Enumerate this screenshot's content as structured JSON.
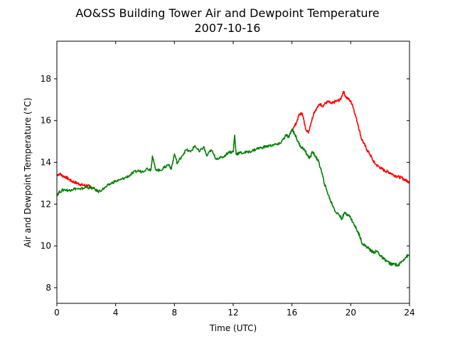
{
  "chart_data": {
    "type": "line",
    "title": "AO&SS Building Tower Air and Dewpoint Temperature",
    "subtitle": "2007-10-16",
    "xlabel": "Time (UTC)",
    "ylabel": "Air and Dewpoint Temperature (°C)",
    "xlim": [
      0,
      24
    ],
    "ylim": [
      7.25,
      19.8
    ],
    "xticks": [
      0,
      4,
      8,
      12,
      16,
      20,
      24
    ],
    "yticks": [
      8,
      10,
      12,
      14,
      16,
      18
    ],
    "grid": false,
    "series": [
      {
        "color": "#ff0000",
        "x": [
          0,
          0.2,
          0.4,
          0.6,
          0.8,
          1.0,
          1.2,
          1.4,
          1.6,
          1.8,
          2.0,
          2.2,
          2.4,
          16.0,
          16.3,
          16.5,
          16.7,
          16.9,
          17.1,
          17.3,
          17.5,
          17.7,
          17.9,
          18.1,
          18.3,
          18.5,
          18.7,
          18.9,
          19.1,
          19.3,
          19.5,
          19.7,
          19.9,
          20.1,
          20.3,
          20.5,
          20.7,
          20.9,
          21.1,
          21.3,
          21.5,
          21.7,
          21.9,
          22.1,
          22.3,
          22.5,
          22.7,
          22.9,
          23.1,
          23.3,
          23.5,
          23.7,
          23.9,
          24.0
        ],
        "y": [
          13.4,
          13.45,
          13.35,
          13.3,
          13.2,
          13.1,
          13.05,
          13.0,
          12.95,
          12.9,
          12.9,
          12.85,
          12.8,
          15.5,
          15.9,
          16.3,
          16.35,
          15.7,
          15.4,
          15.9,
          16.4,
          16.6,
          16.8,
          16.7,
          16.85,
          16.9,
          16.8,
          16.9,
          16.95,
          17.0,
          17.4,
          17.1,
          17.0,
          16.8,
          16.3,
          15.8,
          15.2,
          14.9,
          14.6,
          14.4,
          14.1,
          13.9,
          13.8,
          13.7,
          13.6,
          13.55,
          13.5,
          13.4,
          13.35,
          13.3,
          13.25,
          13.15,
          13.1,
          13.05
        ]
      },
      {
        "color": "#008000",
        "x": [
          0,
          0.2,
          0.5,
          0.8,
          1.0,
          1.3,
          1.6,
          1.9,
          2.2,
          2.5,
          2.8,
          3.1,
          3.4,
          3.7,
          4.0,
          4.3,
          4.6,
          4.9,
          5.2,
          5.5,
          5.8,
          6.1,
          6.4,
          6.5,
          6.7,
          7.0,
          7.3,
          7.6,
          7.8,
          8.0,
          8.2,
          8.5,
          8.8,
          9.1,
          9.4,
          9.7,
          10.0,
          10.2,
          10.5,
          10.8,
          11.1,
          11.4,
          11.7,
          12.0,
          12.1,
          12.2,
          12.4,
          12.7,
          13.0,
          13.3,
          13.6,
          13.9,
          14.2,
          14.5,
          14.8,
          15.1,
          15.4,
          15.6,
          15.8,
          16.0,
          16.2,
          16.4,
          16.6,
          16.8,
          17.0,
          17.2,
          17.4,
          17.6,
          17.8,
          18.0,
          18.2,
          18.4,
          18.6,
          18.8,
          19.0,
          19.2,
          19.4,
          19.6,
          19.8,
          20.0,
          20.2,
          20.4,
          20.6,
          20.8,
          21.0,
          21.2,
          21.4,
          21.6,
          21.8,
          22.0,
          22.2,
          22.4,
          22.6,
          22.8,
          23.0,
          23.2,
          23.4,
          23.6,
          23.8,
          24.0
        ],
        "y": [
          12.45,
          12.6,
          12.7,
          12.65,
          12.7,
          12.75,
          12.7,
          12.8,
          12.8,
          12.75,
          12.6,
          12.7,
          12.85,
          13.0,
          13.1,
          13.15,
          13.25,
          13.35,
          13.5,
          13.6,
          13.55,
          13.7,
          13.65,
          14.3,
          13.7,
          13.6,
          13.75,
          13.9,
          13.7,
          14.4,
          13.95,
          14.3,
          14.6,
          14.5,
          14.8,
          14.5,
          14.75,
          14.3,
          14.6,
          14.2,
          14.2,
          14.3,
          14.5,
          14.5,
          15.3,
          14.4,
          14.45,
          14.45,
          14.5,
          14.55,
          14.65,
          14.7,
          14.75,
          14.8,
          14.85,
          14.85,
          15.1,
          15.3,
          15.2,
          15.6,
          15.35,
          15.0,
          14.75,
          14.65,
          14.4,
          14.2,
          14.5,
          14.3,
          14.05,
          13.6,
          13.0,
          12.6,
          12.2,
          11.9,
          11.6,
          11.5,
          11.3,
          11.6,
          11.5,
          11.35,
          11.05,
          10.8,
          10.5,
          10.1,
          10.0,
          9.9,
          9.75,
          9.7,
          9.75,
          9.55,
          9.4,
          9.3,
          9.2,
          9.1,
          9.15,
          9.05,
          9.2,
          9.35,
          9.5,
          9.55
        ]
      }
    ]
  }
}
